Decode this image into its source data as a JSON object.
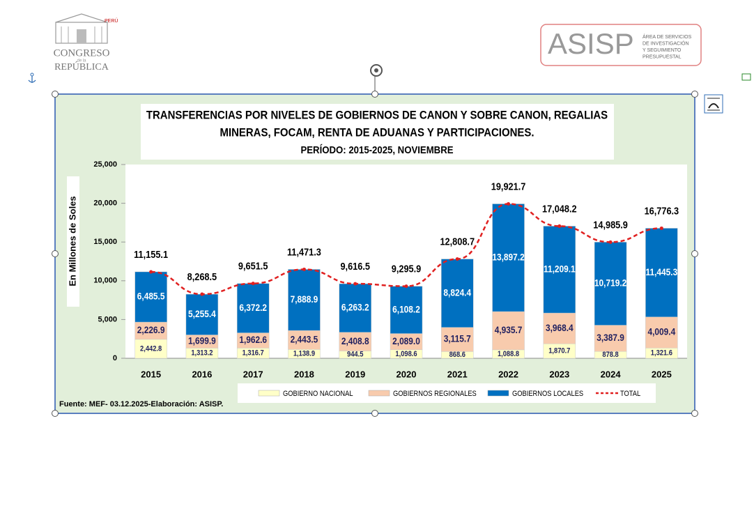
{
  "header": {
    "congreso": {
      "country": "PERÚ",
      "line1": "CONGRESO",
      "small": "de la",
      "line2": "REPÚBLICA"
    },
    "asisp": {
      "name": "ASISP",
      "lines": [
        "ÁREA DE SERVICIOS",
        "DE INVESTIGACIÓN",
        "Y SEGUIMIENTO",
        "PRESUPUESTAL"
      ]
    }
  },
  "chart_data": {
    "type": "bar",
    "stacked": true,
    "title": [
      "TRANSFERENCIAS  POR NIVELES DE GOBIERNOS DE CANON Y SOBRE CANON, REGALIAS",
      "MINERAS, FOCAM, RENTA DE ADUANAS  Y PARTICIPACIONES.",
      "PERÍODO: 2015-2025, NOVIEMBRE"
    ],
    "y_label": "En Millones de Soles",
    "source": "Fuente: MEF- 03.12.2025-Elaboración:  ASISP.",
    "categories": [
      "2015",
      "2016",
      "2017",
      "2018",
      "2019",
      "2020",
      "2021",
      "2022",
      "2023",
      "2024",
      "2025"
    ],
    "ylim": [
      0,
      25000
    ],
    "yticks": [
      0,
      {
        "value": 5000,
        "label": "5,000"
      },
      {
        "value": 10000,
        "label": "10,000"
      },
      {
        "value": 15000,
        "label": "15,000"
      },
      {
        "value": 20000,
        "label": "20,000"
      },
      {
        "value": 25000,
        "label": "25,000"
      }
    ],
    "series": [
      {
        "name": "GOBIERNO NACIONAL",
        "color": "#ffffc8",
        "label_color": "#1f1f5f",
        "values": [
          2442.8,
          1313.2,
          1316.7,
          1138.9,
          944.5,
          1098.6,
          868.6,
          1088.8,
          1870.7,
          878.8,
          1321.6
        ],
        "value_labels": [
          "2,442.8",
          "1,313.2",
          "1,316.7",
          "1,138.9",
          "944.5",
          "1,098.6",
          "868.6",
          "1,088.8",
          "1,870.7",
          "878.8",
          "1,321.6"
        ]
      },
      {
        "name": "GOBIERNOS REGIONALES",
        "color": "#f8cbad",
        "label_color": "#1f1f5f",
        "values": [
          2226.9,
          1699.9,
          1962.6,
          2443.5,
          2408.8,
          2089.0,
          3115.7,
          4935.7,
          3968.4,
          3387.9,
          4009.4
        ],
        "value_labels": [
          "2,226.9",
          "1,699.9",
          "1,962.6",
          "2,443.5",
          "2,408.8",
          "2,089.0",
          "3,115.7",
          "4,935.7",
          "3,968.4",
          "3,387.9",
          "4,009.4"
        ]
      },
      {
        "name": "GOBIERNOS LOCALES",
        "color": "#0070c0",
        "label_color": "#ffffff",
        "values": [
          6485.5,
          5255.4,
          6372.2,
          7888.9,
          6263.2,
          6108.2,
          8824.4,
          13897.2,
          11209.1,
          10719.2,
          11445.3
        ],
        "value_labels": [
          "6,485.5",
          "5,255.4",
          "6,372.2",
          "7,888.9",
          "6,263.2",
          "6,108.2",
          "8,824.4",
          "13,897.2",
          "11,209.1",
          "10,719.2",
          "11,445.3"
        ]
      },
      {
        "name": "TOTAL",
        "type": "line",
        "color": "#e02020",
        "label_color": "#000000",
        "values": [
          11155.1,
          8268.5,
          9651.5,
          11471.3,
          9616.5,
          9295.9,
          12808.7,
          19921.7,
          17048.2,
          14985.9,
          16776.3
        ],
        "value_labels": [
          "11,155.1",
          "8,268.5",
          "9,651.5",
          "11,471.3",
          "9,616.5",
          "9,295.9",
          "12,808.7",
          "19,921.7",
          "17,048.2",
          "14,985.9",
          "16,776.3"
        ]
      }
    ]
  }
}
